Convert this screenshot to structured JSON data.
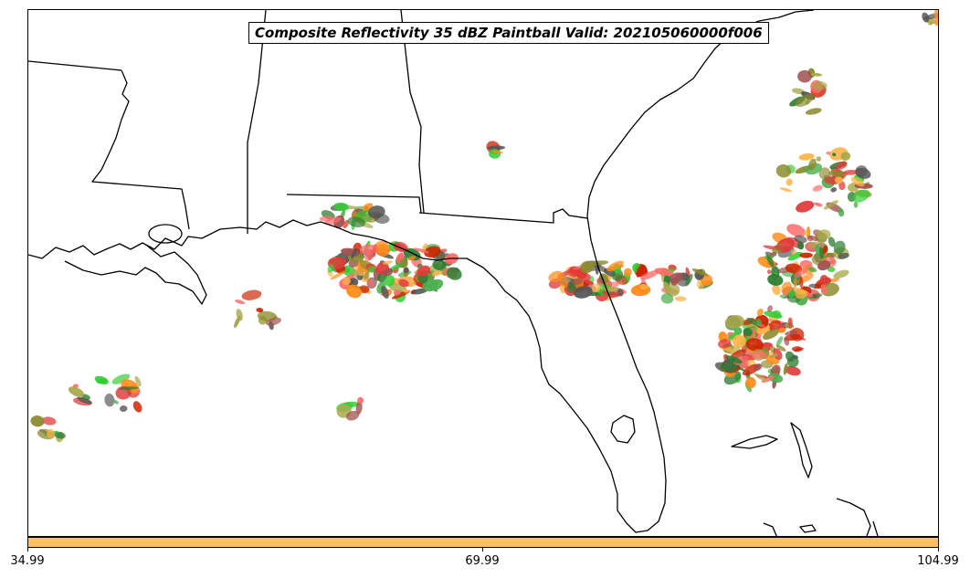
{
  "title": "Composite Reflectivity 35 dBZ Paintball Valid: 202105060000f006",
  "colorbar": {
    "color": "#ffc061",
    "ticks": [
      "34.99",
      "69.99",
      "104.99"
    ]
  },
  "palette": [
    "#e03b3b",
    "#ff6a6a",
    "#ff8c1a",
    "#ffb347",
    "#a9a94b",
    "#8a8a2e",
    "#4caf50",
    "#33cc33",
    "#2e7d32",
    "#a05050",
    "#555555",
    "#cc2200"
  ]
}
